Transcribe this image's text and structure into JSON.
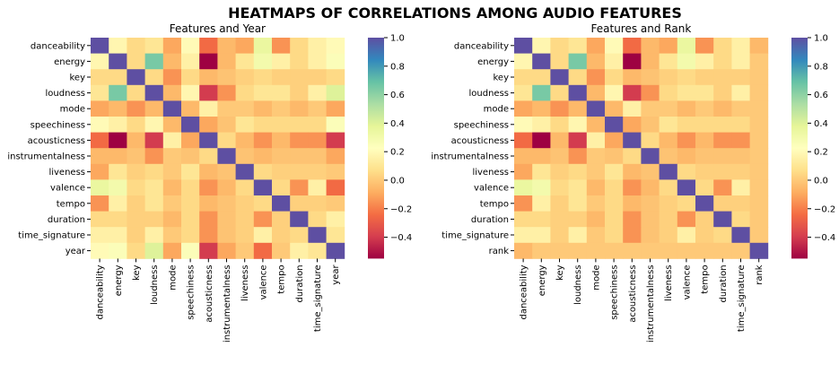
{
  "figure": {
    "title": "HEATMAPS OF CORRELATIONS AMONG AUDIO FEATURES"
  },
  "chart_data": [
    {
      "type": "heatmap",
      "title": "Features and Year",
      "colormap": "Spectral",
      "vmin": -0.55,
      "vmax": 1.0,
      "colorbar_ticks": [
        "1.0",
        "0.8",
        "0.6",
        "0.4",
        "0.2",
        "0.0",
        "−0.2",
        "−0.4"
      ],
      "labels": [
        "danceability",
        "energy",
        "key",
        "loudness",
        "mode",
        "speechiness",
        "acousticness",
        "instrumentalness",
        "liveness",
        "valence",
        "tempo",
        "duration",
        "time_signature",
        "year"
      ],
      "matrix": [
        [
          1.0,
          0.18,
          0.05,
          0.1,
          -0.1,
          0.2,
          -0.25,
          -0.05,
          -0.1,
          0.35,
          -0.15,
          0.05,
          0.15,
          0.2
        ],
        [
          0.18,
          1.0,
          0.05,
          0.65,
          -0.05,
          0.15,
          -0.55,
          -0.05,
          0.1,
          0.3,
          0.15,
          0.05,
          0.15,
          0.25
        ],
        [
          0.05,
          0.05,
          1.0,
          0.05,
          -0.15,
          0.05,
          -0.05,
          -0.02,
          0.02,
          0.05,
          0.02,
          0.02,
          0.02,
          0.05
        ],
        [
          0.1,
          0.65,
          0.05,
          1.0,
          -0.05,
          0.18,
          -0.4,
          -0.15,
          0.05,
          0.1,
          0.1,
          0.02,
          0.15,
          0.4
        ],
        [
          -0.1,
          -0.05,
          -0.15,
          -0.05,
          1.0,
          -0.05,
          0.15,
          0.0,
          0.0,
          -0.05,
          0.0,
          -0.05,
          0.0,
          -0.1
        ],
        [
          0.2,
          0.15,
          0.05,
          0.18,
          -0.05,
          1.0,
          -0.1,
          -0.02,
          0.1,
          0.05,
          0.05,
          0.05,
          0.05,
          0.25
        ],
        [
          -0.25,
          -0.55,
          -0.05,
          -0.4,
          0.15,
          -0.1,
          1.0,
          0.05,
          -0.05,
          -0.15,
          -0.05,
          -0.15,
          -0.15,
          -0.4
        ],
        [
          -0.05,
          -0.05,
          -0.02,
          -0.15,
          0.0,
          -0.02,
          0.05,
          1.0,
          -0.02,
          -0.05,
          -0.02,
          -0.02,
          -0.02,
          -0.1
        ],
        [
          -0.1,
          0.1,
          0.02,
          0.05,
          0.0,
          0.1,
          -0.05,
          -0.02,
          1.0,
          0.05,
          0.02,
          0.02,
          0.02,
          0.0
        ],
        [
          0.35,
          0.3,
          0.05,
          0.1,
          -0.05,
          0.05,
          -0.15,
          -0.05,
          0.05,
          1.0,
          0.05,
          -0.15,
          0.15,
          -0.25
        ],
        [
          -0.15,
          0.15,
          0.02,
          0.1,
          0.0,
          0.05,
          -0.05,
          -0.02,
          0.02,
          0.05,
          1.0,
          0.02,
          0.02,
          0.0
        ],
        [
          0.05,
          0.05,
          0.02,
          0.02,
          -0.05,
          0.05,
          -0.15,
          -0.02,
          0.02,
          -0.15,
          0.02,
          1.0,
          0.05,
          0.15
        ],
        [
          0.15,
          0.15,
          0.02,
          0.15,
          0.0,
          0.05,
          -0.15,
          -0.02,
          0.02,
          0.15,
          0.02,
          0.05,
          1.0,
          0.1
        ],
        [
          0.2,
          0.25,
          0.05,
          0.4,
          -0.1,
          0.25,
          -0.4,
          -0.1,
          0.0,
          -0.25,
          0.0,
          0.15,
          0.1,
          1.0
        ]
      ]
    },
    {
      "type": "heatmap",
      "title": "Features and Rank",
      "colormap": "Spectral",
      "vmin": -0.55,
      "vmax": 1.0,
      "colorbar_ticks": [
        "1.0",
        "0.8",
        "0.6",
        "0.4",
        "0.2",
        "0.0",
        "−0.2",
        "−0.4"
      ],
      "labels": [
        "danceability",
        "energy",
        "key",
        "loudness",
        "mode",
        "speechiness",
        "acousticness",
        "instrumentalness",
        "liveness",
        "valence",
        "tempo",
        "duration",
        "time_signature",
        "rank"
      ],
      "matrix": [
        [
          1.0,
          0.18,
          0.05,
          0.1,
          -0.1,
          0.2,
          -0.25,
          -0.05,
          -0.1,
          0.35,
          -0.15,
          0.05,
          0.15,
          -0.05
        ],
        [
          0.18,
          1.0,
          0.05,
          0.65,
          -0.05,
          0.15,
          -0.55,
          -0.05,
          0.1,
          0.3,
          0.15,
          0.05,
          0.15,
          0.0
        ],
        [
          0.05,
          0.05,
          1.0,
          0.05,
          -0.15,
          0.05,
          -0.05,
          -0.02,
          0.02,
          0.05,
          0.02,
          0.02,
          0.02,
          0.0
        ],
        [
          0.1,
          0.65,
          0.05,
          1.0,
          -0.05,
          0.18,
          -0.4,
          -0.15,
          0.05,
          0.1,
          0.1,
          0.02,
          0.15,
          0.0
        ],
        [
          -0.1,
          -0.05,
          -0.15,
          -0.05,
          1.0,
          -0.05,
          0.15,
          0.0,
          0.0,
          -0.05,
          0.0,
          -0.05,
          0.0,
          0.0
        ],
        [
          0.2,
          0.15,
          0.05,
          0.18,
          -0.05,
          1.0,
          -0.1,
          -0.02,
          0.1,
          0.05,
          0.05,
          0.05,
          0.05,
          0.0
        ],
        [
          -0.25,
          -0.55,
          -0.05,
          -0.4,
          0.15,
          -0.1,
          1.0,
          0.05,
          -0.05,
          -0.15,
          -0.05,
          -0.15,
          -0.15,
          0.0
        ],
        [
          -0.05,
          -0.05,
          -0.02,
          -0.15,
          0.0,
          -0.02,
          0.05,
          1.0,
          -0.02,
          -0.05,
          -0.02,
          -0.02,
          -0.02,
          0.0
        ],
        [
          -0.1,
          0.1,
          0.02,
          0.05,
          0.0,
          0.1,
          -0.05,
          -0.02,
          1.0,
          0.05,
          0.02,
          0.02,
          0.02,
          0.0
        ],
        [
          0.35,
          0.3,
          0.05,
          0.1,
          -0.05,
          0.05,
          -0.15,
          -0.05,
          0.05,
          1.0,
          0.05,
          -0.15,
          0.15,
          0.0
        ],
        [
          -0.15,
          0.15,
          0.02,
          0.1,
          0.0,
          0.05,
          -0.05,
          -0.02,
          0.02,
          0.05,
          1.0,
          0.02,
          0.02,
          0.0
        ],
        [
          0.05,
          0.05,
          0.02,
          0.02,
          -0.05,
          0.05,
          -0.15,
          -0.02,
          0.02,
          -0.15,
          0.02,
          1.0,
          0.05,
          0.0
        ],
        [
          0.15,
          0.15,
          0.02,
          0.15,
          0.0,
          0.05,
          -0.15,
          -0.02,
          0.02,
          0.15,
          0.02,
          0.05,
          1.0,
          0.0
        ],
        [
          -0.05,
          0.0,
          0.0,
          0.0,
          0.0,
          0.0,
          0.0,
          0.0,
          0.0,
          0.0,
          0.0,
          0.0,
          0.0,
          1.0
        ]
      ]
    }
  ]
}
